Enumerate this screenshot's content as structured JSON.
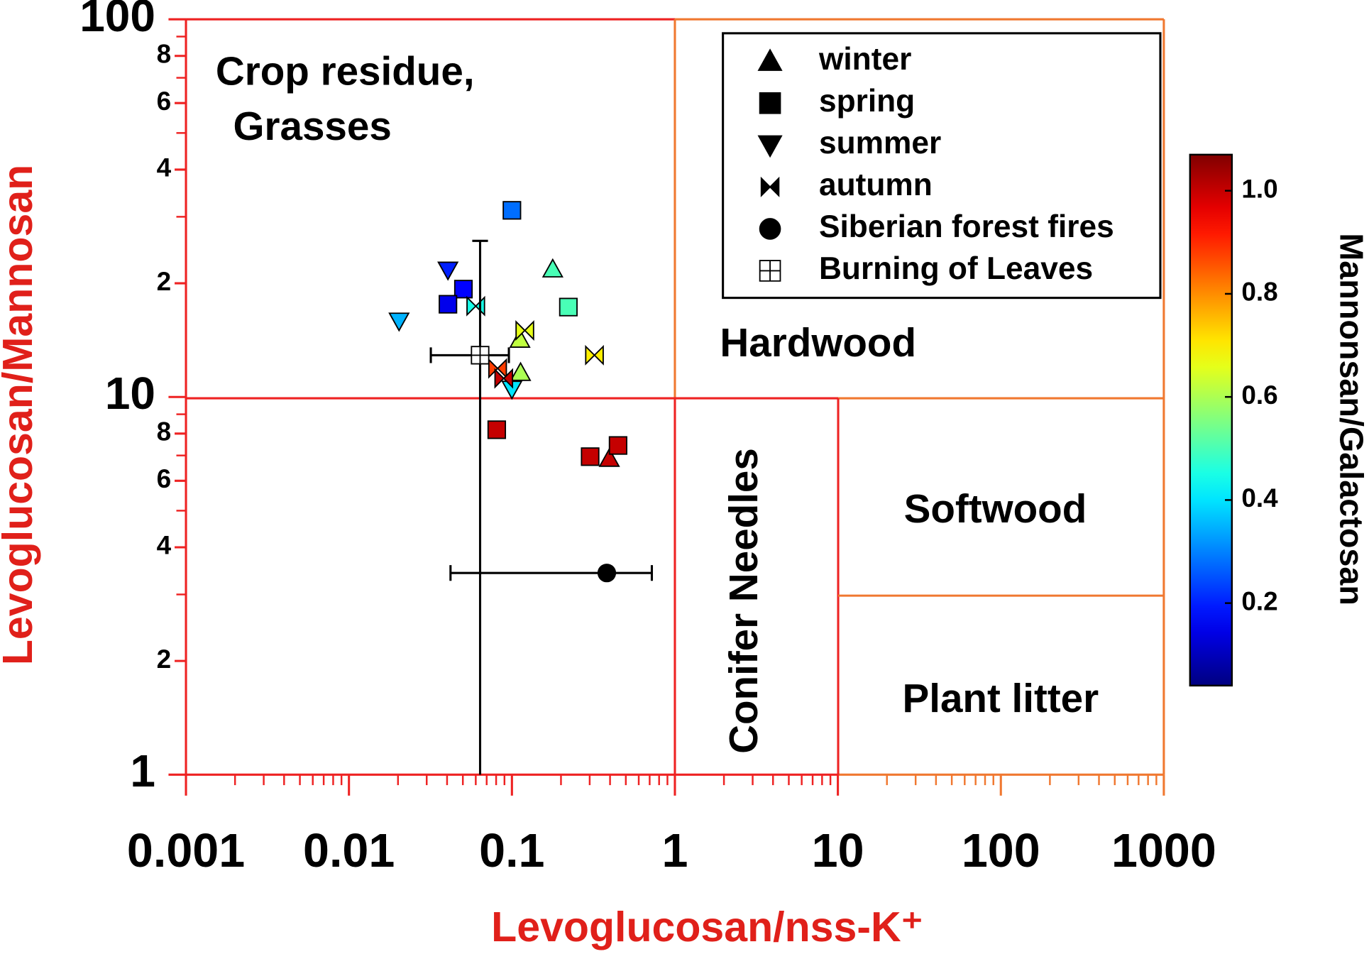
{
  "chart_data": {
    "type": "scatter",
    "xlabel": "Levoglucosan/nss-K⁺",
    "ylabel": "Levoglucosan/Mannosan",
    "colorbar_label": "Mannonsan/Galactosan",
    "log_x": true,
    "log_y": true,
    "minor_ticks": true,
    "colormap": "jet",
    "legend": "upper right",
    "xlim": [
      0.001,
      1000
    ],
    "ylim": [
      1,
      100
    ],
    "xticks": [
      0.001,
      0.01,
      0.1,
      1,
      10,
      100,
      1000
    ],
    "yticks": [
      1,
      2,
      4,
      6,
      8,
      10,
      {
        "value": 20,
        "label": "2"
      },
      {
        "value": 40,
        "label": "4"
      },
      {
        "value": 60,
        "label": "6"
      },
      {
        "value": 80,
        "label": "8"
      },
      100
    ],
    "clim": [
      0.04,
      1.07
    ],
    "cticks": [
      0.2,
      0.4,
      0.6,
      0.8,
      {
        "value": 1,
        "label": "1.0"
      }
    ],
    "annotations": [
      "Crop residue,",
      "Grasses",
      "Hardwood",
      "Conifer Needles",
      "Softwood",
      "Plant litter"
    ],
    "series": [
      {
        "name": "winter",
        "marker": "triangle-up",
        "x": [
          0.178,
          0.112,
          0.113,
          0.396
        ],
        "values": [
          21.8,
          14.2,
          11.6,
          6.87
        ],
        "colors": [
          0.5,
          0.62,
          0.6,
          1.0
        ]
      },
      {
        "name": "spring",
        "marker": "square",
        "x": [
          0.1,
          0.0504,
          0.0405,
          0.222,
          0.0807,
          0.302,
          0.448
        ],
        "values": [
          31.2,
          19.3,
          17.6,
          17.3,
          8.19,
          6.95,
          7.44
        ],
        "colors": [
          0.28,
          0.17,
          0.15,
          0.5,
          1.0,
          1.0,
          1.0
        ]
      },
      {
        "name": "summer",
        "marker": "triangle-down",
        "x": [
          0.0405,
          0.0203,
          0.1
        ],
        "values": [
          21.7,
          15.9,
          10.5
        ],
        "colors": [
          0.2,
          0.35,
          0.4
        ]
      },
      {
        "name": "autumn",
        "marker": "bowtie",
        "x": [
          0.06,
          0.12,
          0.321,
          0.0817,
          0.0891
        ],
        "values": [
          17.4,
          15.0,
          12.9,
          11.9,
          11.2
        ],
        "colors": [
          0.45,
          0.66,
          0.7,
          0.88,
          1.0
        ]
      },
      {
        "name": "Siberian forest fires",
        "marker": "circle",
        "color": "#000000",
        "x": [
          0.382
        ],
        "values": [
          3.42
        ],
        "xerr": [
          0.34
        ]
      },
      {
        "name": "Burning of Leaves",
        "marker": "crossed-square",
        "color": "#ffffff",
        "x": [
          0.0638
        ],
        "values": [
          12.9
        ],
        "xerr": [
          0.032
        ],
        "yerr": [
          13
        ]
      }
    ]
  }
}
